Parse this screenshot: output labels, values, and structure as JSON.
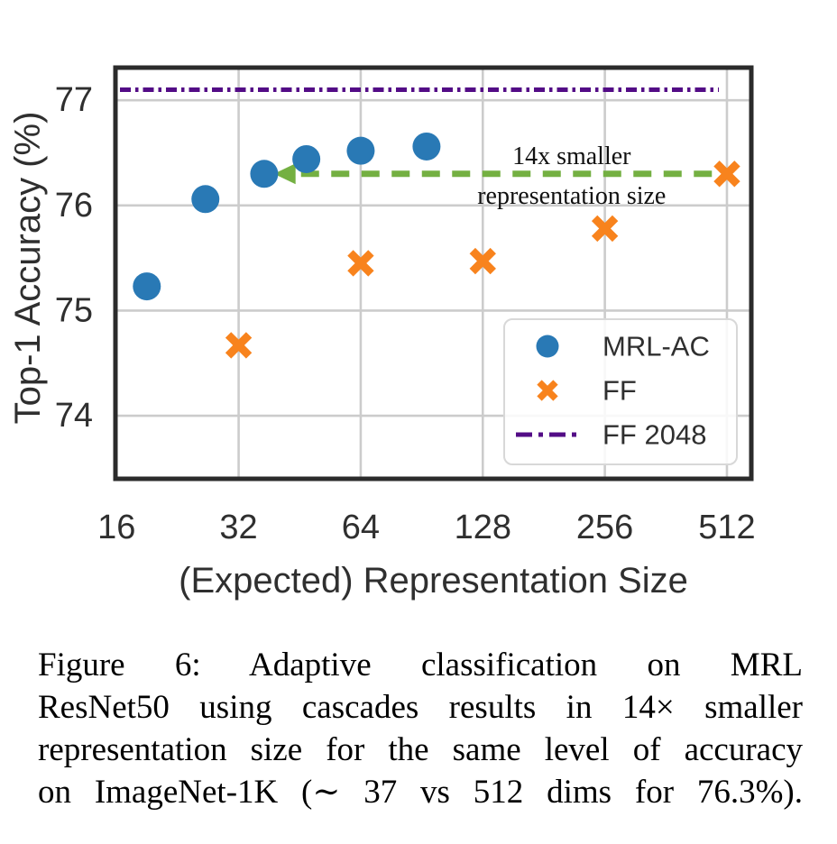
{
  "chart_data": {
    "type": "scatter",
    "title": "",
    "xlabel": "(Expected) Representation Size",
    "ylabel": "Top-1 Accuracy (%)",
    "x_scale": "log2",
    "x_ticks": [
      16,
      32,
      64,
      128,
      256,
      512
    ],
    "x_tick_labels": [
      "16",
      "32",
      "64",
      "128",
      "256",
      "512"
    ],
    "y_ticks": [
      74,
      75,
      76,
      77
    ],
    "y_tick_labels": [
      "74",
      "75",
      "76",
      "77"
    ],
    "xlim": [
      15.9,
      588
    ],
    "ylim": [
      73.4,
      77.31
    ],
    "grid": true,
    "legend_position": "lower right",
    "series": [
      {
        "name": "MRL-AC",
        "kind": "scatter",
        "marker": "circle",
        "color": "#2979B5",
        "x": [
          19,
          26.5,
          37,
          47,
          64,
          93
        ],
        "y": [
          75.23,
          76.06,
          76.3,
          76.44,
          76.52,
          76.56
        ]
      },
      {
        "name": "FF",
        "kind": "scatter",
        "marker": "X",
        "color": "#F8831D",
        "x": [
          32,
          64,
          128,
          256,
          512
        ],
        "y": [
          74.67,
          75.45,
          75.47,
          75.78,
          76.3
        ]
      },
      {
        "name": "FF 2048",
        "kind": "hline",
        "linestyle": "dashdot",
        "color": "#530C86",
        "y_value": 77.1
      }
    ],
    "annotation": {
      "text_line1": "14x smaller",
      "text_line2": "representation size",
      "text_center_x": 212,
      "arrow": {
        "color": "#74B042",
        "style": "dashed",
        "y": 76.3,
        "x_from": 470,
        "x_to": 39.5,
        "direction": "left"
      }
    },
    "style": {
      "grid_color": "#CCCCCC",
      "spine_color": "#2B2B2B",
      "text_color": "#2F2F2F",
      "legend_border": "#D8D8D8",
      "legend_fill_alpha": 0.85
    }
  },
  "caption": {
    "lines": [
      "Figure 6: Adaptive classification on MRL",
      "ResNet50 using cascades results in 14× smaller",
      "representation size for the same level of accuracy",
      "on ImageNet-1K (∼ 37 vs 512 dims for 76.3%)."
    ]
  }
}
